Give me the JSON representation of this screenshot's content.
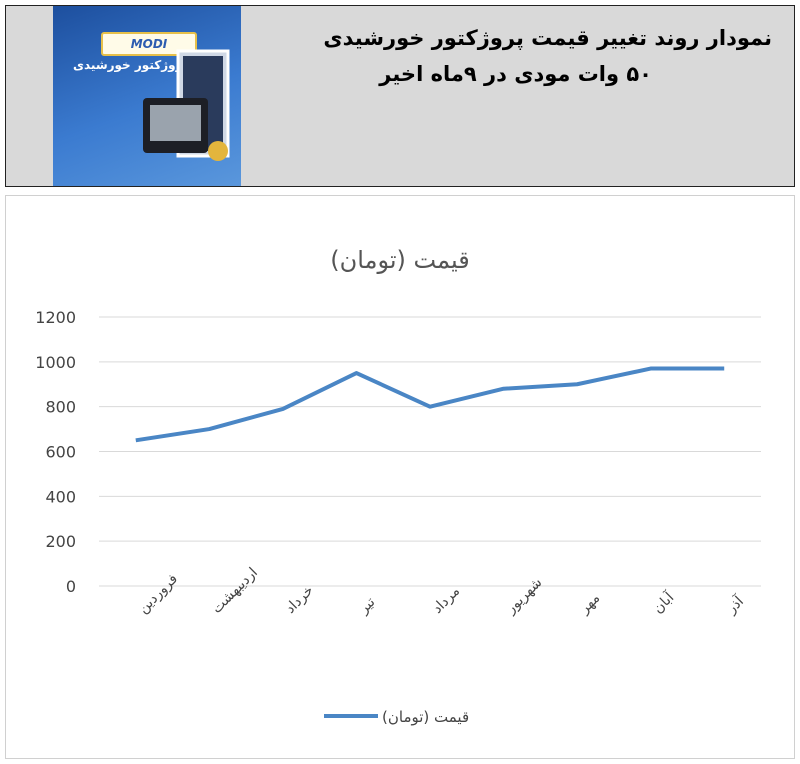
{
  "header": {
    "title_line1": "نمودار روند تغییر قیمت پروژکتور خورشیدی",
    "title_line2": "۵۰ وات مودی در ۹ماه اخیر",
    "product_brand": "MODI",
    "product_text": "پروژکتور خورشیدی"
  },
  "chart_data": {
    "type": "line",
    "title": "قیمت (تومان)",
    "categories": [
      "فروردین",
      "اردیبهشت",
      "خرداد",
      "تیر",
      "مرداد",
      "شهریور",
      "مهر",
      "آبان",
      "آذر"
    ],
    "series": [
      {
        "name": "قیمت (تومان)",
        "values": [
          650,
          700,
          790,
          950,
          800,
          880,
          900,
          970,
          970
        ],
        "color": "#4a86c5"
      }
    ],
    "ylim": [
      0,
      1200
    ],
    "yticks": [
      0,
      200,
      400,
      600,
      800,
      1000,
      1200
    ],
    "grid": true,
    "legend": "bottom"
  }
}
